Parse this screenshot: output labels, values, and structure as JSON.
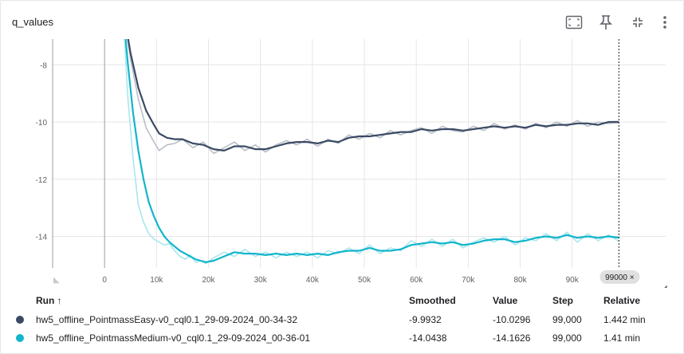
{
  "panel": {
    "title": "q_values",
    "toolbar": [
      {
        "name": "fit-domain-icon"
      },
      {
        "name": "pin-icon"
      },
      {
        "name": "collapse-icon"
      },
      {
        "name": "more-vert-icon"
      }
    ]
  },
  "chart_data": {
    "type": "line",
    "title": "q_values",
    "xlim": [
      -10000,
      108000
    ],
    "ylim": [
      -15.1,
      -7.1
    ],
    "x_ticks": [
      0,
      10000,
      20000,
      30000,
      40000,
      50000,
      60000,
      70000,
      80000,
      90000
    ],
    "x_tick_labels": [
      "0",
      "10k",
      "20k",
      "30k",
      "40k",
      "50k",
      "60k",
      "70k",
      "80k",
      "90k"
    ],
    "y_ticks": [
      -8,
      -10,
      -12,
      -14
    ],
    "y_tick_labels": [
      "-8",
      "-10",
      "-12",
      "-14"
    ],
    "grid": true,
    "cursor": {
      "x": 99000,
      "label": "99000 ×"
    },
    "series": [
      {
        "name": "hw5_offline_PointmassEasy-v0_cql0.1_29-09-2024_00-34-32",
        "color": "#3b4a64",
        "raw_color": "#b9bfc9",
        "x": [
          3500,
          5000,
          6500,
          8000,
          9500,
          10500,
          12000,
          13500,
          15000,
          17000,
          19000,
          21000,
          23000,
          25000,
          27000,
          29000,
          31000,
          33000,
          35000,
          37000,
          39000,
          41000,
          43000,
          45000,
          47000,
          49000,
          51000,
          53000,
          55000,
          57000,
          59000,
          61000,
          63000,
          65000,
          67000,
          69000,
          71000,
          73000,
          75000,
          77000,
          79000,
          81000,
          83000,
          85000,
          87000,
          89000,
          91000,
          93000,
          95000,
          97000,
          99000
        ],
        "smoothed": [
          -6.0,
          -7.6,
          -8.8,
          -9.6,
          -10.1,
          -10.4,
          -10.55,
          -10.6,
          -10.6,
          -10.75,
          -10.8,
          -10.95,
          -11.0,
          -10.85,
          -10.85,
          -10.95,
          -10.95,
          -10.85,
          -10.75,
          -10.7,
          -10.7,
          -10.75,
          -10.65,
          -10.7,
          -10.55,
          -10.5,
          -10.5,
          -10.45,
          -10.4,
          -10.35,
          -10.35,
          -10.25,
          -10.3,
          -10.25,
          -10.25,
          -10.3,
          -10.25,
          -10.2,
          -10.15,
          -10.2,
          -10.15,
          -10.2,
          -10.1,
          -10.15,
          -10.1,
          -10.1,
          -10.05,
          -10.05,
          -10.1,
          -10.0,
          -9.9932
        ],
        "raw": [
          -6.0,
          -7.8,
          -9.2,
          -10.2,
          -10.7,
          -11.0,
          -10.8,
          -10.75,
          -10.6,
          -10.9,
          -10.7,
          -11.1,
          -10.9,
          -10.7,
          -11.0,
          -10.8,
          -11.05,
          -10.8,
          -10.65,
          -10.8,
          -10.6,
          -10.85,
          -10.6,
          -10.75,
          -10.45,
          -10.6,
          -10.4,
          -10.55,
          -10.3,
          -10.45,
          -10.3,
          -10.2,
          -10.4,
          -10.15,
          -10.3,
          -10.35,
          -10.15,
          -10.3,
          -10.05,
          -10.25,
          -10.1,
          -10.25,
          -10.05,
          -10.2,
          -10.0,
          -10.15,
          -9.95,
          -10.15,
          -10.0,
          -10.05,
          -10.0296
        ]
      },
      {
        "name": "hw5_offline_PointmassMedium-v0_cql0.1_29-09-2024_00-36-01",
        "color": "#12b5cb",
        "raw_color": "#a9e6ee",
        "x": [
          3500,
          4500,
          5500,
          6500,
          7500,
          8500,
          9500,
          10500,
          11500,
          12500,
          13500,
          14500,
          15500,
          16500,
          17500,
          18500,
          19500,
          21000,
          23000,
          25000,
          27000,
          29000,
          31000,
          33000,
          35000,
          37000,
          39000,
          41000,
          43000,
          45000,
          47000,
          49000,
          51000,
          53000,
          55000,
          57000,
          59000,
          61000,
          63000,
          65000,
          67000,
          69000,
          71000,
          73000,
          75000,
          77000,
          79000,
          81000,
          83000,
          85000,
          87000,
          89000,
          91000,
          93000,
          95000,
          97000,
          99000
        ],
        "smoothed": [
          -6.0,
          -8.0,
          -9.7,
          -11.0,
          -12.0,
          -12.8,
          -13.3,
          -13.7,
          -14.0,
          -14.2,
          -14.35,
          -14.5,
          -14.6,
          -14.7,
          -14.8,
          -14.85,
          -14.9,
          -14.85,
          -14.7,
          -14.55,
          -14.6,
          -14.6,
          -14.65,
          -14.6,
          -14.65,
          -14.6,
          -14.65,
          -14.6,
          -14.65,
          -14.55,
          -14.5,
          -14.5,
          -14.4,
          -14.5,
          -14.5,
          -14.45,
          -14.3,
          -14.25,
          -14.2,
          -14.25,
          -14.2,
          -14.3,
          -14.25,
          -14.15,
          -14.1,
          -14.1,
          -14.2,
          -14.15,
          -14.05,
          -14.0,
          -14.05,
          -13.95,
          -14.05,
          -14.0,
          -14.05,
          -14.0,
          -14.0438
        ],
        "raw": [
          -6.0,
          -9.2,
          -11.3,
          -12.9,
          -13.5,
          -13.9,
          -14.1,
          -14.2,
          -14.3,
          -14.25,
          -14.5,
          -14.7,
          -14.8,
          -14.65,
          -14.9,
          -14.85,
          -14.95,
          -14.75,
          -14.55,
          -14.7,
          -14.45,
          -14.7,
          -14.55,
          -14.75,
          -14.55,
          -14.7,
          -14.55,
          -14.75,
          -14.5,
          -14.6,
          -14.4,
          -14.6,
          -14.3,
          -14.6,
          -14.4,
          -14.5,
          -14.15,
          -14.35,
          -14.1,
          -14.35,
          -14.1,
          -14.4,
          -14.2,
          -14.05,
          -14.2,
          -14.0,
          -14.3,
          -14.05,
          -14.15,
          -13.9,
          -14.15,
          -13.85,
          -14.2,
          -13.9,
          -14.15,
          -13.95,
          -14.1626
        ]
      }
    ]
  },
  "table": {
    "headers": {
      "run": "Run ↑",
      "smoothed": "Smoothed",
      "value": "Value",
      "step": "Step",
      "relative": "Relative"
    },
    "rows": [
      {
        "color": "#3b4a64",
        "name": "hw5_offline_PointmassEasy-v0_cql0.1_29-09-2024_00-34-32",
        "smoothed": "-9.9932",
        "value": "-10.0296",
        "step": "99,000",
        "relative": "1.442 min"
      },
      {
        "color": "#12b5cb",
        "name": "hw5_offline_PointmassMedium-v0_cql0.1_29-09-2024_00-36-01",
        "smoothed": "-14.0438",
        "value": "-14.1626",
        "step": "99,000",
        "relative": "1.41 min"
      }
    ]
  }
}
